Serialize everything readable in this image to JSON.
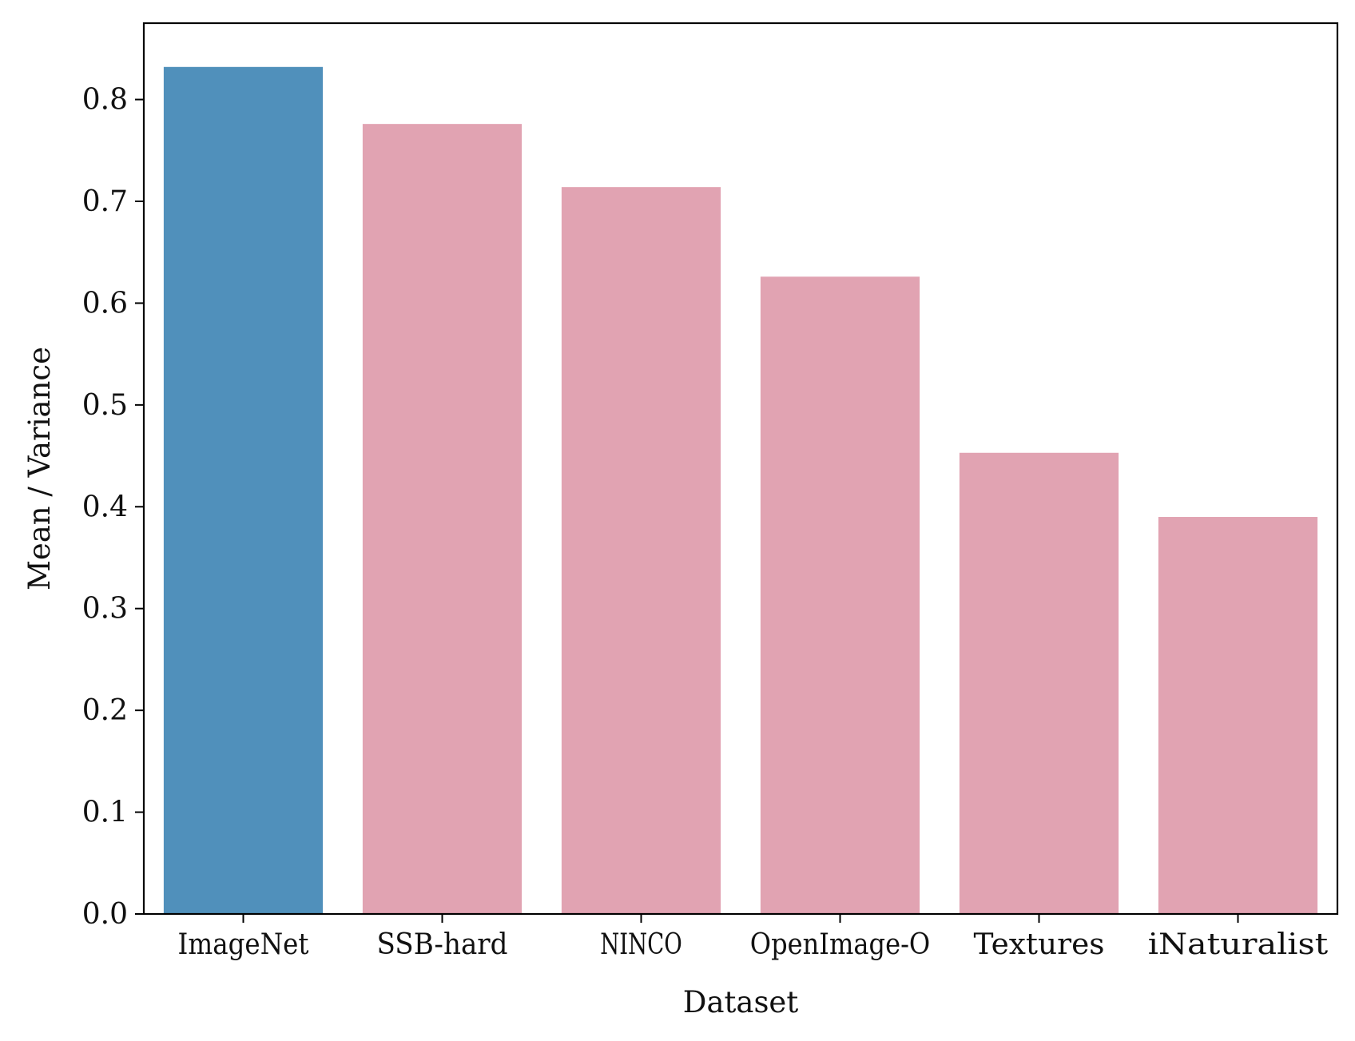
{
  "chart_data": {
    "type": "bar",
    "title": "",
    "xlabel": "Dataset",
    "ylabel": "Mean / Variance",
    "categories": [
      "ImageNet",
      "SSB-hard",
      "NINCO",
      "OpenImage-O",
      "Textures",
      "iNaturalist"
    ],
    "values": [
      0.832,
      0.776,
      0.714,
      0.626,
      0.453,
      0.39
    ],
    "bar_colors": [
      "#5090BB",
      "#E1A3B2",
      "#E1A3B2",
      "#E1A3B2",
      "#E1A3B2",
      "#E1A3B2"
    ],
    "ylim": [
      0,
      0.875
    ],
    "yticks": [
      {
        "value": 0.0,
        "label": "0.0"
      },
      {
        "value": 0.1,
        "label": "0.1"
      },
      {
        "value": 0.2,
        "label": "0.2"
      },
      {
        "value": 0.3,
        "label": "0.3"
      },
      {
        "value": 0.4,
        "label": "0.4"
      },
      {
        "value": 0.5,
        "label": "0.5"
      },
      {
        "value": 0.6,
        "label": "0.6"
      },
      {
        "value": 0.7,
        "label": "0.7"
      },
      {
        "value": 0.8,
        "label": "0.8"
      }
    ],
    "grid": false,
    "legend": "none"
  }
}
